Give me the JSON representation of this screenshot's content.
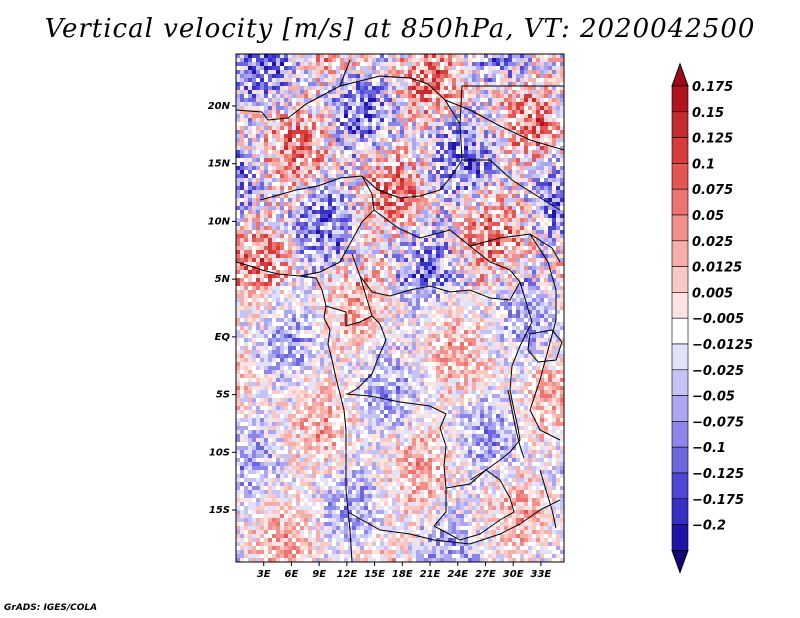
{
  "title": "Vertical velocity [m/s] at 850hPa, VT: 2020042500",
  "footer": "GrADS: IGES/COLA",
  "map": {
    "lat_range": [
      -19.5,
      24.5
    ],
    "lon_range": [
      0.0,
      35.5
    ],
    "lat_ticks": [
      {
        "lat": 20,
        "label": "20N"
      },
      {
        "lat": 15,
        "label": "15N"
      },
      {
        "lat": 10,
        "label": "10N"
      },
      {
        "lat": 5,
        "label": "5N"
      },
      {
        "lat": 0,
        "label": "EQ"
      },
      {
        "lat": -5,
        "label": "5S"
      },
      {
        "lat": -10,
        "label": "10S"
      },
      {
        "lat": -15,
        "label": "15S"
      }
    ],
    "lon_ticks": [
      {
        "lon": 3,
        "label": "3E"
      },
      {
        "lon": 6,
        "label": "6E"
      },
      {
        "lon": 9,
        "label": "9E"
      },
      {
        "lon": 12,
        "label": "12E"
      },
      {
        "lon": 15,
        "label": "15E"
      },
      {
        "lon": 18,
        "label": "18E"
      },
      {
        "lon": 21,
        "label": "21E"
      },
      {
        "lon": 24,
        "label": "24E"
      },
      {
        "lon": 27,
        "label": "27E"
      },
      {
        "lon": 30,
        "label": "30E"
      },
      {
        "lon": 33,
        "label": "33E"
      }
    ]
  },
  "colorbar": {
    "levels": [
      {
        "label": "0.175",
        "color": "#b0141e"
      },
      {
        "label": "0.15",
        "color": "#c42a2e"
      },
      {
        "label": "0.125",
        "color": "#d63c3e"
      },
      {
        "label": "0.1",
        "color": "#e35654"
      },
      {
        "label": "0.075",
        "color": "#ec7470"
      },
      {
        "label": "0.05",
        "color": "#f2918c"
      },
      {
        "label": "0.025",
        "color": "#f6aeaa"
      },
      {
        "label": "0.0125",
        "color": "#f9c9c6"
      },
      {
        "label": "0.005",
        "color": "#fce2e0"
      },
      {
        "label": "−0.005",
        "color": "#ffffff"
      },
      {
        "label": "−0.0125",
        "color": "#e1e1fb"
      },
      {
        "label": "−0.025",
        "color": "#c6c4f6"
      },
      {
        "label": "−0.05",
        "color": "#aaa6f0"
      },
      {
        "label": "−0.075",
        "color": "#8c86e8"
      },
      {
        "label": "−0.1",
        "color": "#6c66df"
      },
      {
        "label": "−0.125",
        "color": "#4f48d4"
      },
      {
        "label": "−0.175",
        "color": "#3730c4"
      },
      {
        "label": "−0.2",
        "color": "#2014a8"
      }
    ],
    "top_cap_color": "#a00a16",
    "bottom_cap_color": "#12067a"
  }
}
